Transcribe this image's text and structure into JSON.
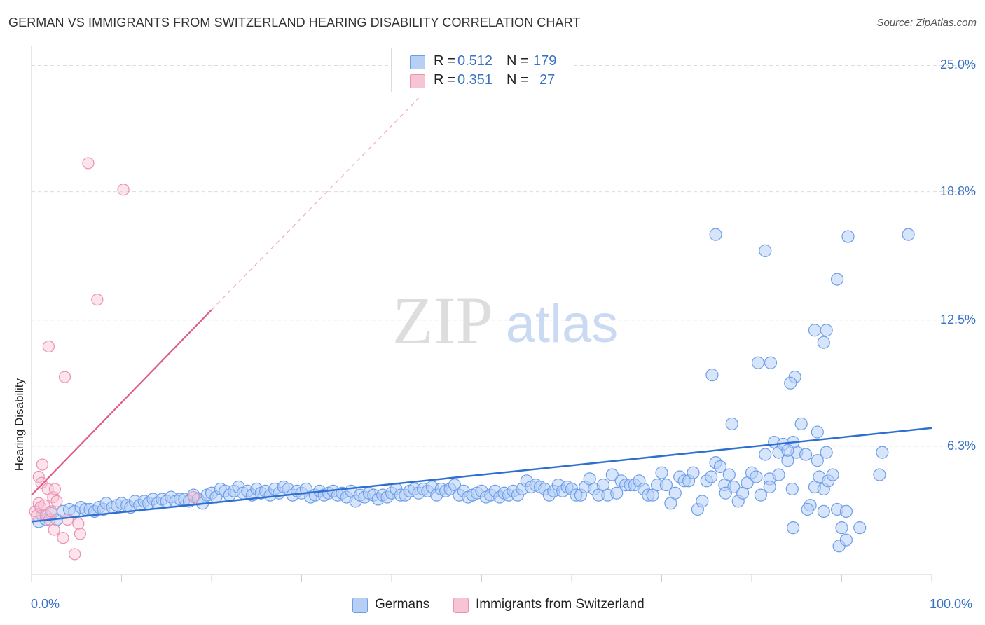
{
  "title": "GERMAN VS IMMIGRANTS FROM SWITZERLAND HEARING DISABILITY CORRELATION CHART",
  "source": "Source: ZipAtlas.com",
  "watermark": {
    "zip": "ZIP",
    "atlas": "atlas"
  },
  "colors": {
    "german": "#6d9eeb",
    "german_fill": "#b7cff5",
    "german_line": "#2e6fd0",
    "swiss": "#ee8fb0",
    "swiss_fill": "#f7c4d4",
    "swiss_line": "#e05a8a",
    "tick_text": "#3a72c4"
  },
  "legend": {
    "german": {
      "r_label": "R =",
      "r_value": "0.512",
      "n_label": "N =",
      "n_value": "179"
    },
    "swiss": {
      "r_label": "R =",
      "r_value": "0.351",
      "n_label": "N =",
      "n_value": "27"
    }
  },
  "bottom_legend": {
    "german": "Germans",
    "swiss": "Immigrants from Switzerland"
  },
  "chart_data": {
    "type": "scatter",
    "title": "GERMAN VS IMMIGRANTS FROM SWITZERLAND HEARING DISABILITY CORRELATION CHART",
    "xlabel": "",
    "ylabel": "Hearing Disability",
    "xlim": [
      0,
      100
    ],
    "ylim": [
      0,
      25.6
    ],
    "x_tick_labels": [
      "0.0%",
      "100.0%"
    ],
    "y_ticks": [
      6.3,
      12.5,
      18.8,
      25.0
    ],
    "y_tick_labels": [
      "6.3%",
      "12.5%",
      "18.8%",
      "25.0%"
    ],
    "grid": true,
    "legend_position": "top-center",
    "series": [
      {
        "name": "Germans",
        "r": 0.512,
        "n": 179,
        "trend": {
          "x": [
            0,
            100
          ],
          "y": [
            2.6,
            7.2
          ]
        },
        "points": [
          [
            0.8,
            2.6
          ],
          [
            1.2,
            2.9
          ],
          [
            1.6,
            2.7
          ],
          [
            2.2,
            3.0
          ],
          [
            2.8,
            2.7
          ],
          [
            3.5,
            3.1
          ],
          [
            4.2,
            3.2
          ],
          [
            4.8,
            3.1
          ],
          [
            5.5,
            3.3
          ],
          [
            6.0,
            3.2
          ],
          [
            6.5,
            3.2
          ],
          [
            7.0,
            3.1
          ],
          [
            7.5,
            3.3
          ],
          [
            8.0,
            3.2
          ],
          [
            8.3,
            3.5
          ],
          [
            9.0,
            3.3
          ],
          [
            9.5,
            3.4
          ],
          [
            10.0,
            3.5
          ],
          [
            10.6,
            3.4
          ],
          [
            11.0,
            3.3
          ],
          [
            11.5,
            3.6
          ],
          [
            12.0,
            3.4
          ],
          [
            12.5,
            3.6
          ],
          [
            13.0,
            3.5
          ],
          [
            13.5,
            3.7
          ],
          [
            14.0,
            3.5
          ],
          [
            14.5,
            3.7
          ],
          [
            15.0,
            3.6
          ],
          [
            15.5,
            3.8
          ],
          [
            16.0,
            3.6
          ],
          [
            16.5,
            3.7
          ],
          [
            17.0,
            3.7
          ],
          [
            17.5,
            3.6
          ],
          [
            18.0,
            3.9
          ],
          [
            18.5,
            3.7
          ],
          [
            19.0,
            3.5
          ],
          [
            19.5,
            3.9
          ],
          [
            20.0,
            4.0
          ],
          [
            20.5,
            3.8
          ],
          [
            21.0,
            4.2
          ],
          [
            21.5,
            4.1
          ],
          [
            22.0,
            3.9
          ],
          [
            22.5,
            4.1
          ],
          [
            23.0,
            4.3
          ],
          [
            23.5,
            4.0
          ],
          [
            24.0,
            4.1
          ],
          [
            24.5,
            3.9
          ],
          [
            25.0,
            4.2
          ],
          [
            25.5,
            4.0
          ],
          [
            26.0,
            4.1
          ],
          [
            26.5,
            3.9
          ],
          [
            27.0,
            4.2
          ],
          [
            27.5,
            4.0
          ],
          [
            28.0,
            4.3
          ],
          [
            28.5,
            4.2
          ],
          [
            29.0,
            3.9
          ],
          [
            29.5,
            4.1
          ],
          [
            30.0,
            4.0
          ],
          [
            30.5,
            4.2
          ],
          [
            31.0,
            3.8
          ],
          [
            31.5,
            3.9
          ],
          [
            32.0,
            4.1
          ],
          [
            32.5,
            3.9
          ],
          [
            33.0,
            4.0
          ],
          [
            33.5,
            4.1
          ],
          [
            34.0,
            3.9
          ],
          [
            34.5,
            4.0
          ],
          [
            35.0,
            3.8
          ],
          [
            35.5,
            4.1
          ],
          [
            36.0,
            3.6
          ],
          [
            36.5,
            3.9
          ],
          [
            37.0,
            3.8
          ],
          [
            37.5,
            4.0
          ],
          [
            38.0,
            3.9
          ],
          [
            38.5,
            3.7
          ],
          [
            39.0,
            3.9
          ],
          [
            39.5,
            3.8
          ],
          [
            40.0,
            4.0
          ],
          [
            40.5,
            4.2
          ],
          [
            41.0,
            3.9
          ],
          [
            41.5,
            3.9
          ],
          [
            42.0,
            4.1
          ],
          [
            42.5,
            4.2
          ],
          [
            43.0,
            4.0
          ],
          [
            43.5,
            4.2
          ],
          [
            44.0,
            4.1
          ],
          [
            44.5,
            4.3
          ],
          [
            45.0,
            3.9
          ],
          [
            45.5,
            4.2
          ],
          [
            46.0,
            4.1
          ],
          [
            46.5,
            4.2
          ],
          [
            47.0,
            4.4
          ],
          [
            47.5,
            3.9
          ],
          [
            48.0,
            4.1
          ],
          [
            48.5,
            3.8
          ],
          [
            49.0,
            3.9
          ],
          [
            49.5,
            4.0
          ],
          [
            50.0,
            4.1
          ],
          [
            50.5,
            3.8
          ],
          [
            51.0,
            3.9
          ],
          [
            51.5,
            4.1
          ],
          [
            52.0,
            3.8
          ],
          [
            52.5,
            4.0
          ],
          [
            53.0,
            3.9
          ],
          [
            53.5,
            4.1
          ],
          [
            54.0,
            3.9
          ],
          [
            54.5,
            4.2
          ],
          [
            55.0,
            4.6
          ],
          [
            55.5,
            4.3
          ],
          [
            56.0,
            4.4
          ],
          [
            56.5,
            4.3
          ],
          [
            57.0,
            4.2
          ],
          [
            57.5,
            3.9
          ],
          [
            58.0,
            4.1
          ],
          [
            58.5,
            4.4
          ],
          [
            59.0,
            4.1
          ],
          [
            59.5,
            4.3
          ],
          [
            60.0,
            4.2
          ],
          [
            60.5,
            3.9
          ],
          [
            61.0,
            3.9
          ],
          [
            61.5,
            4.3
          ],
          [
            62.0,
            4.7
          ],
          [
            62.5,
            4.2
          ],
          [
            63.0,
            3.9
          ],
          [
            63.5,
            4.4
          ],
          [
            64.0,
            3.9
          ],
          [
            64.5,
            4.9
          ],
          [
            65.0,
            4.0
          ],
          [
            65.5,
            4.6
          ],
          [
            66.0,
            4.4
          ],
          [
            66.5,
            4.4
          ],
          [
            67.0,
            4.4
          ],
          [
            67.5,
            4.6
          ],
          [
            68.0,
            4.2
          ],
          [
            68.5,
            3.9
          ],
          [
            69.0,
            3.9
          ],
          [
            69.5,
            4.4
          ],
          [
            70.0,
            5.0
          ],
          [
            70.5,
            4.4
          ],
          [
            71.0,
            3.5
          ],
          [
            71.5,
            4.0
          ],
          [
            72.0,
            4.8
          ],
          [
            72.5,
            4.6
          ],
          [
            73.0,
            4.6
          ],
          [
            73.5,
            5.0
          ],
          [
            74.0,
            3.2
          ],
          [
            74.5,
            3.6
          ],
          [
            75.0,
            4.6
          ],
          [
            75.5,
            4.8
          ],
          [
            76.0,
            5.5
          ],
          [
            76.5,
            5.3
          ],
          [
            77.0,
            4.4
          ],
          [
            77.5,
            4.9
          ],
          [
            78.0,
            4.3
          ],
          [
            78.5,
            3.6
          ],
          [
            79.0,
            4.0
          ],
          [
            79.5,
            4.5
          ],
          [
            80.0,
            5.0
          ],
          [
            80.5,
            4.8
          ],
          [
            81.0,
            3.9
          ],
          [
            81.5,
            5.9
          ],
          [
            82.0,
            4.7
          ],
          [
            82.5,
            6.5
          ],
          [
            83.0,
            6.0
          ],
          [
            83.5,
            6.4
          ],
          [
            84.0,
            5.6
          ],
          [
            84.5,
            4.2
          ],
          [
            85.0,
            6.0
          ],
          [
            85.5,
            7.4
          ],
          [
            86.0,
            5.9
          ],
          [
            86.5,
            3.4
          ],
          [
            87.0,
            4.3
          ],
          [
            87.5,
            4.8
          ],
          [
            88.0,
            4.2
          ],
          [
            88.5,
            4.6
          ],
          [
            89.0,
            4.9
          ],
          [
            89.5,
            3.2
          ],
          [
            90.0,
            2.3
          ],
          [
            90.5,
            3.1
          ]
        ]
      },
      {
        "name": "Immigrants from Switzerland",
        "r": 0.351,
        "n": 27,
        "trend": {
          "x": [
            0,
            20
          ],
          "y": [
            3.9,
            13.0
          ]
        },
        "trend_extended": {
          "x": [
            20,
            43
          ],
          "y": [
            13.0,
            23.4
          ]
        },
        "points": [
          [
            0.4,
            3.1
          ],
          [
            0.6,
            2.9
          ],
          [
            0.8,
            3.5
          ],
          [
            0.8,
            4.8
          ],
          [
            1.0,
            3.3
          ],
          [
            1.1,
            4.5
          ],
          [
            1.2,
            5.4
          ],
          [
            1.4,
            3.4
          ],
          [
            1.6,
            2.9
          ],
          [
            1.8,
            4.2
          ],
          [
            2.0,
            2.7
          ],
          [
            2.2,
            3.1
          ],
          [
            2.4,
            3.8
          ],
          [
            2.5,
            2.2
          ],
          [
            2.6,
            4.2
          ],
          [
            2.8,
            3.6
          ],
          [
            3.5,
            1.8
          ],
          [
            3.7,
            9.7
          ],
          [
            4.0,
            2.7
          ],
          [
            4.8,
            1.0
          ],
          [
            5.2,
            2.5
          ],
          [
            5.4,
            2.0
          ],
          [
            6.3,
            20.2
          ],
          [
            7.3,
            13.5
          ],
          [
            10.2,
            18.9
          ],
          [
            1.9,
            11.2
          ],
          [
            18.0,
            3.8
          ]
        ]
      }
    ],
    "outlier_points_german": [
      [
        76.0,
        16.7
      ],
      [
        81.5,
        15.9
      ],
      [
        89.5,
        14.5
      ],
      [
        90.7,
        16.6
      ],
      [
        87.0,
        12.0
      ],
      [
        88.3,
        12.0
      ],
      [
        88.0,
        11.4
      ],
      [
        80.7,
        10.4
      ],
      [
        82.1,
        10.4
      ],
      [
        75.6,
        9.8
      ],
      [
        84.8,
        9.7
      ],
      [
        84.3,
        9.4
      ],
      [
        77.8,
        7.4
      ],
      [
        87.3,
        7.0
      ],
      [
        84.6,
        6.5
      ],
      [
        84.0,
        6.1
      ],
      [
        88.3,
        6.0
      ],
      [
        94.5,
        6.0
      ],
      [
        97.4,
        16.7
      ],
      [
        94.2,
        4.9
      ],
      [
        87.3,
        5.6
      ],
      [
        77.1,
        4.0
      ],
      [
        82.0,
        4.3
      ],
      [
        83.0,
        4.9
      ],
      [
        84.6,
        2.3
      ],
      [
        86.2,
        3.2
      ],
      [
        88.0,
        3.1
      ],
      [
        89.7,
        1.4
      ],
      [
        90.5,
        1.7
      ],
      [
        92.0,
        2.3
      ]
    ]
  }
}
